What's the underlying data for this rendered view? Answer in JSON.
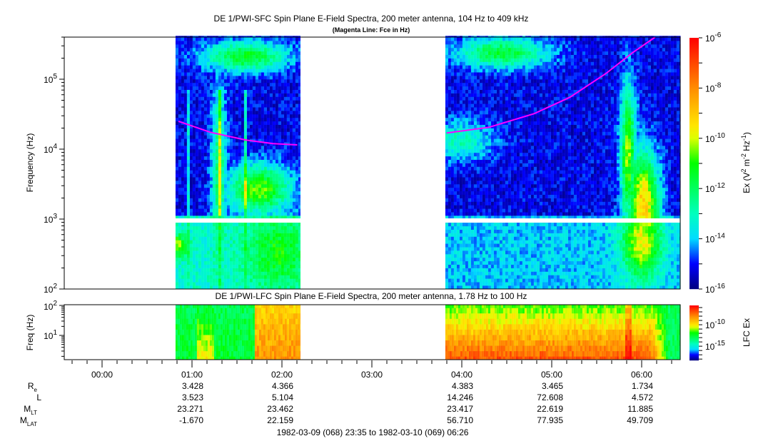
{
  "chart_data": [
    {
      "type": "heatmap",
      "title": "DE 1/PWI-SFC  Spin Plane E-Field Spectra, 200 meter antenna, 104 Hz to 409 kHz",
      "subtitle": "(Magenta Line: Fce in Hz)",
      "ylabel": "Frequency (Hz)",
      "yscale": "log",
      "ylim": [
        100,
        409000
      ],
      "yticks": [
        {
          "base": "10",
          "exp": "2"
        },
        {
          "base": "10",
          "exp": "3"
        },
        {
          "base": "10",
          "exp": "4"
        },
        {
          "base": "10",
          "exp": "5"
        }
      ],
      "xlim_hours": [
        -0.417,
        6.433
      ],
      "data_segments_hours": [
        [
          0.817,
          2.206
        ],
        [
          3.817,
          6.433
        ]
      ],
      "colorbar": {
        "label_main": "Ex (V",
        "label_sup1": "2",
        "label_mid": " m",
        "label_sup2": "-2",
        "label_mid2": " Hz",
        "label_sup3": "-1",
        "label_end": ")",
        "log_range": [
          -16,
          -6
        ],
        "ticks": [
          {
            "base": "10",
            "exp": "-6"
          },
          {
            "base": "10",
            "exp": "-8"
          },
          {
            "base": "10",
            "exp": "-10"
          },
          {
            "base": "10",
            "exp": "-12"
          },
          {
            "base": "10",
            "exp": "-14"
          },
          {
            "base": "10",
            "exp": "-16"
          }
        ]
      },
      "background_log_power": {
        "above_1kHz": -15.2,
        "below_1kHz_seg1": -13.2,
        "below_1kHz_seg2": -14.0
      },
      "features": [
        {
          "t": 1.6,
          "logf": 5.3,
          "level": -11.3,
          "st": 0.33,
          "sf": 0.15
        },
        {
          "t": 1.75,
          "logf": 3.4,
          "level": -10.6,
          "st": 0.25,
          "sf": 0.25
        },
        {
          "t": 1.3,
          "logf": 3.6,
          "level": -12.0,
          "st": 0.06,
          "sf": 0.9
        },
        {
          "t": 0.85,
          "logf": 2.6,
          "level": -10.0,
          "st": 0.07,
          "sf": 0.1
        },
        {
          "t": 1.95,
          "logf": 2.5,
          "level": -11.2,
          "st": 0.25,
          "sf": 0.4
        },
        {
          "t": 4.45,
          "logf": 5.35,
          "level": -11.5,
          "st": 0.35,
          "sf": 0.15
        },
        {
          "t": 4.0,
          "logf": 4.1,
          "level": -13.0,
          "st": 0.25,
          "sf": 0.2
        },
        {
          "t": 5.85,
          "logf": 3.9,
          "level": -10.3,
          "st": 0.06,
          "sf": 0.7
        },
        {
          "t": 6.02,
          "logf": 3.2,
          "level": -9.0,
          "st": 0.12,
          "sf": 0.5
        },
        {
          "t": 6.0,
          "logf": 2.65,
          "level": -9.6,
          "st": 0.15,
          "sf": 0.35
        }
      ],
      "fce_line": {
        "color": "#ff00ff",
        "segments": [
          [
            [
              0.85,
              25000
            ],
            [
              1.2,
              17500
            ],
            [
              1.6,
              13500
            ],
            [
              1.9,
              12000
            ],
            [
              2.17,
              11500
            ]
          ],
          [
            [
              3.83,
              17000
            ],
            [
              4.3,
              20500
            ],
            [
              4.8,
              32000
            ],
            [
              5.2,
              55000
            ],
            [
              5.6,
              120000
            ],
            [
              5.9,
              240000
            ],
            [
              6.15,
              420000
            ]
          ]
        ]
      }
    },
    {
      "type": "heatmap",
      "title": "DE 1/PWI-LFC  Spin Plane E-Field Spectra, 200 meter antenna, 1.78 Hz to 100 Hz",
      "ylabel": "Freq (Hz)",
      "yscale": "log",
      "ylim": [
        1.78,
        100
      ],
      "yticks": [
        {
          "base": "10",
          "exp": "1"
        },
        {
          "base": "10",
          "exp": "2"
        }
      ],
      "colorbar": {
        "label": "LFC Ex",
        "log_range": [
          -18.3,
          -5.5
        ],
        "ticks": [
          {
            "base": "10",
            "exp": "-10"
          },
          {
            "base": "10",
            "exp": "-15"
          }
        ]
      },
      "levels": {
        "seg1_early": -12.5,
        "seg1_late": -8.2,
        "seg2_low_freq": -7.0,
        "seg2_high_freq": -11.8,
        "seg2_end": -13.0
      }
    }
  ],
  "time_axis": {
    "ticks": [
      "00:00",
      "01:00",
      "02:00",
      "03:00",
      "04:00",
      "05:00",
      "06:00"
    ]
  },
  "ephemeris": {
    "rows": [
      {
        "label": "R",
        "sub": "e",
        "values": [
          "",
          "3.428",
          "4.366",
          "",
          "4.383",
          "3.465",
          "1.734"
        ]
      },
      {
        "label": "L",
        "sub": "",
        "values": [
          "",
          "3.523",
          "5.104",
          "",
          "14.246",
          "72.608",
          "4.572"
        ]
      },
      {
        "label": "M",
        "sub": "LT",
        "values": [
          "",
          "23.271",
          "23.462",
          "",
          "23.417",
          "22.619",
          "11.885"
        ]
      },
      {
        "label": "M",
        "sub": "LAT",
        "values": [
          "",
          "-1.670",
          "22.159",
          "",
          "56.710",
          "77.935",
          "49.709"
        ]
      }
    ]
  },
  "time_range": "1982-03-09 (068) 23:35 to 1982-03-10 (069) 06:26"
}
